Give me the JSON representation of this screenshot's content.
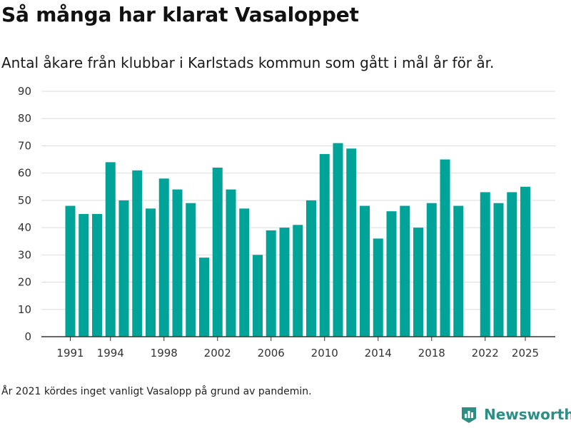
{
  "header": {
    "title": "Så många har klarat Vasaloppet",
    "subtitle": "Antal åkare från klubbar i Karlstads kommun som gått i mål år för år."
  },
  "footer": {
    "note": "År 2021 kördes inget vanligt Vasalopp på grund av pandemin.",
    "brand": "Newsworthy"
  },
  "colors": {
    "bar": "#00a398",
    "grid": "#dddddd",
    "axis": "#333333",
    "brand": "#2c8f86"
  },
  "chart_data": {
    "type": "bar",
    "title": "Så många har klarat Vasaloppet",
    "xlabel": "",
    "ylabel": "",
    "ylim": [
      0,
      90
    ],
    "yticks": [
      0,
      10,
      20,
      30,
      40,
      50,
      60,
      70,
      80,
      90
    ],
    "xticks": [
      1991,
      1994,
      1998,
      2002,
      2006,
      2010,
      2014,
      2018,
      2022,
      2025
    ],
    "grid": true,
    "categories": [
      1991,
      1992,
      1993,
      1994,
      1995,
      1996,
      1997,
      1998,
      1999,
      2000,
      2001,
      2002,
      2003,
      2004,
      2005,
      2006,
      2007,
      2008,
      2009,
      2010,
      2011,
      2012,
      2013,
      2014,
      2015,
      2016,
      2017,
      2018,
      2019,
      2020,
      2021,
      2022,
      2023,
      2024,
      2025
    ],
    "values": [
      48,
      45,
      45,
      64,
      50,
      61,
      47,
      58,
      54,
      49,
      29,
      62,
      54,
      47,
      30,
      39,
      40,
      41,
      50,
      67,
      71,
      69,
      48,
      36,
      46,
      48,
      40,
      49,
      65,
      48,
      null,
      53,
      49,
      53,
      55
    ]
  }
}
